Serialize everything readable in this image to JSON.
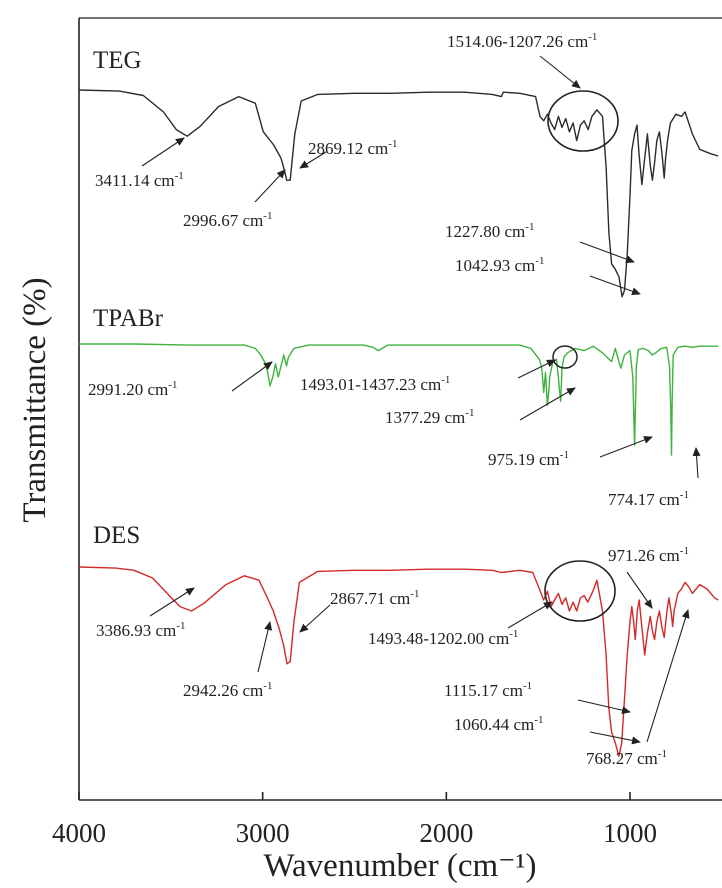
{
  "chart_data": {
    "type": "line",
    "xlabel": "Wavenumber (cm⁻¹)",
    "ylabel": "Transmittance (%)",
    "xlim": [
      4000,
      520
    ],
    "x_reversed": true,
    "xticks": [
      4000,
      3000,
      2000,
      1000
    ],
    "colors": {
      "TEG": "#2b2b2b",
      "TPABr": "#3fb33f",
      "DES": "#d12a2a"
    },
    "series": [
      {
        "name": "TEG",
        "baseline": 0.0,
        "points": [
          [
            4000,
            0.0
          ],
          [
            3780,
            -1
          ],
          [
            3650,
            -5
          ],
          [
            3540,
            -20
          ],
          [
            3470,
            -36
          ],
          [
            3411.14,
            -42
          ],
          [
            3340,
            -33
          ],
          [
            3240,
            -15
          ],
          [
            3130,
            -6
          ],
          [
            3040,
            -12
          ],
          [
            2996.67,
            -38
          ],
          [
            2940,
            -50
          ],
          [
            2900,
            -62
          ],
          [
            2880,
            -74
          ],
          [
            2869.12,
            -82
          ],
          [
            2850,
            -82
          ],
          [
            2825,
            -40
          ],
          [
            2790,
            -10
          ],
          [
            2700,
            -4
          ],
          [
            2500,
            -3
          ],
          [
            2300,
            -3
          ],
          [
            2100,
            -2
          ],
          [
            1900,
            -2
          ],
          [
            1750,
            -4
          ],
          [
            1700,
            -6
          ],
          [
            1690,
            -2
          ],
          [
            1600,
            -3
          ],
          [
            1514.06,
            -6
          ],
          [
            1490,
            -24
          ],
          [
            1470,
            -28
          ],
          [
            1450,
            -22
          ],
          [
            1430,
            -30
          ],
          [
            1410,
            -36
          ],
          [
            1390,
            -24
          ],
          [
            1370,
            -34
          ],
          [
            1350,
            -26
          ],
          [
            1330,
            -38
          ],
          [
            1310,
            -30
          ],
          [
            1290,
            -46
          ],
          [
            1270,
            -32
          ],
          [
            1250,
            -28
          ],
          [
            1227.8,
            -36
          ],
          [
            1207.26,
            -24
          ],
          [
            1180,
            -18
          ],
          [
            1150,
            -24
          ],
          [
            1130,
            -70
          ],
          [
            1115,
            -130
          ],
          [
            1100,
            -158
          ],
          [
            1080,
            -163
          ],
          [
            1060,
            -170
          ],
          [
            1042.93,
            -188
          ],
          [
            1030,
            -182
          ],
          [
            1015,
            -150
          ],
          [
            1000,
            -96
          ],
          [
            990,
            -55
          ],
          [
            975,
            -40
          ],
          [
            962,
            -32
          ],
          [
            950,
            -60
          ],
          [
            935,
            -86
          ],
          [
            920,
            -62
          ],
          [
            905,
            -40
          ],
          [
            890,
            -68
          ],
          [
            878,
            -82
          ],
          [
            866,
            -66
          ],
          [
            854,
            -46
          ],
          [
            840,
            -38
          ],
          [
            826,
            -58
          ],
          [
            814,
            -80
          ],
          [
            806,
            -62
          ],
          [
            795,
            -45
          ],
          [
            780,
            -30
          ],
          [
            750,
            -22
          ],
          [
            720,
            -24
          ],
          [
            700,
            -20
          ],
          [
            660,
            -40
          ],
          [
            620,
            -54
          ],
          [
            560,
            -58
          ],
          [
            520,
            -60
          ]
        ]
      },
      {
        "name": "TPABr",
        "baseline": 0.0,
        "points": [
          [
            4000,
            0.0
          ],
          [
            3700,
            0
          ],
          [
            3400,
            -1
          ],
          [
            3100,
            -1
          ],
          [
            3040,
            -4
          ],
          [
            3010,
            -10
          ],
          [
            2991.2,
            -16
          ],
          [
            2975,
            -24
          ],
          [
            2960,
            -38
          ],
          [
            2945,
            -30
          ],
          [
            2930,
            -18
          ],
          [
            2915,
            -30
          ],
          [
            2900,
            -20
          ],
          [
            2885,
            -10
          ],
          [
            2870,
            -20
          ],
          [
            2860,
            -12
          ],
          [
            2830,
            -4
          ],
          [
            2750,
            -1
          ],
          [
            2600,
            -1
          ],
          [
            2450,
            -1
          ],
          [
            2400,
            -3
          ],
          [
            2370,
            -6
          ],
          [
            2350,
            -4
          ],
          [
            2320,
            -1
          ],
          [
            2200,
            -1
          ],
          [
            2000,
            -1
          ],
          [
            1800,
            -1
          ],
          [
            1600,
            -1
          ],
          [
            1540,
            -4
          ],
          [
            1493.01,
            -14
          ],
          [
            1480,
            -22
          ],
          [
            1470,
            -44
          ],
          [
            1460,
            -26
          ],
          [
            1450,
            -56
          ],
          [
            1440,
            -38
          ],
          [
            1437.23,
            -30
          ],
          [
            1420,
            -16
          ],
          [
            1400,
            -14
          ],
          [
            1390,
            -30
          ],
          [
            1384,
            -42
          ],
          [
            1377.29,
            -52
          ],
          [
            1370,
            -22
          ],
          [
            1360,
            -12
          ],
          [
            1340,
            -8
          ],
          [
            1300,
            -4
          ],
          [
            1250,
            -6
          ],
          [
            1200,
            -2
          ],
          [
            1150,
            -8
          ],
          [
            1100,
            -16
          ],
          [
            1080,
            -4
          ],
          [
            1050,
            -22
          ],
          [
            1030,
            -10
          ],
          [
            1000,
            -6
          ],
          [
            985,
            -30
          ],
          [
            980,
            -62
          ],
          [
            975.19,
            -92
          ],
          [
            970,
            -54
          ],
          [
            965,
            -20
          ],
          [
            955,
            -5
          ],
          [
            930,
            -4
          ],
          [
            900,
            -6
          ],
          [
            880,
            -10
          ],
          [
            860,
            -8
          ],
          [
            830,
            -4
          ],
          [
            800,
            -3
          ],
          [
            785,
            -20
          ],
          [
            778,
            -60
          ],
          [
            774.17,
            -101
          ],
          [
            770,
            -50
          ],
          [
            765,
            -10
          ],
          [
            740,
            -3
          ],
          [
            700,
            -2
          ],
          [
            660,
            -3
          ],
          [
            620,
            -2
          ],
          [
            560,
            -2
          ],
          [
            520,
            -2
          ]
        ]
      },
      {
        "name": "DES",
        "baseline": 0.0,
        "points": [
          [
            4000,
            0.0
          ],
          [
            3800,
            -1
          ],
          [
            3700,
            -3
          ],
          [
            3600,
            -10
          ],
          [
            3520,
            -24
          ],
          [
            3450,
            -36
          ],
          [
            3386.93,
            -40
          ],
          [
            3320,
            -33
          ],
          [
            3200,
            -16
          ],
          [
            3100,
            -8
          ],
          [
            3020,
            -12
          ],
          [
            2980,
            -26
          ],
          [
            2942.26,
            -40
          ],
          [
            2910,
            -56
          ],
          [
            2885,
            -72
          ],
          [
            2867.71,
            -88
          ],
          [
            2850,
            -86
          ],
          [
            2830,
            -50
          ],
          [
            2800,
            -14
          ],
          [
            2700,
            -4
          ],
          [
            2500,
            -3
          ],
          [
            2300,
            -3
          ],
          [
            2100,
            -2
          ],
          [
            1900,
            -2
          ],
          [
            1750,
            -3
          ],
          [
            1700,
            -5
          ],
          [
            1600,
            -3
          ],
          [
            1530,
            -5
          ],
          [
            1493.48,
            -20
          ],
          [
            1470,
            -30
          ],
          [
            1450,
            -22
          ],
          [
            1430,
            -36
          ],
          [
            1410,
            -30
          ],
          [
            1390,
            -24
          ],
          [
            1370,
            -34
          ],
          [
            1350,
            -28
          ],
          [
            1330,
            -40
          ],
          [
            1310,
            -32
          ],
          [
            1290,
            -40
          ],
          [
            1270,
            -28
          ],
          [
            1250,
            -26
          ],
          [
            1230,
            -32
          ],
          [
            1202,
            -22
          ],
          [
            1180,
            -12
          ],
          [
            1150,
            -40
          ],
          [
            1130,
            -80
          ],
          [
            1115.17,
            -128
          ],
          [
            1100,
            -150
          ],
          [
            1080,
            -160
          ],
          [
            1060.44,
            -172
          ],
          [
            1045,
            -160
          ],
          [
            1030,
            -120
          ],
          [
            1015,
            -80
          ],
          [
            1000,
            -50
          ],
          [
            990,
            -36
          ],
          [
            980,
            -50
          ],
          [
            971.26,
            -66
          ],
          [
            960,
            -40
          ],
          [
            950,
            -30
          ],
          [
            935,
            -55
          ],
          [
            920,
            -80
          ],
          [
            905,
            -60
          ],
          [
            890,
            -45
          ],
          [
            878,
            -58
          ],
          [
            866,
            -66
          ],
          [
            854,
            -50
          ],
          [
            840,
            -40
          ],
          [
            826,
            -55
          ],
          [
            814,
            -64
          ],
          [
            800,
            -42
          ],
          [
            788,
            -28
          ],
          [
            775,
            -42
          ],
          [
            768.27,
            -54
          ],
          [
            760,
            -40
          ],
          [
            740,
            -24
          ],
          [
            720,
            -20
          ],
          [
            700,
            -14
          ],
          [
            680,
            -18
          ],
          [
            660,
            -24
          ],
          [
            620,
            -16
          ],
          [
            580,
            -20
          ],
          [
            540,
            -28
          ],
          [
            520,
            -30
          ]
        ]
      }
    ],
    "series_labels": [
      "TEG",
      "TPABr",
      "DES"
    ],
    "annotations": [
      {
        "series": "TEG",
        "text": "3411.14 cm",
        "sup": "-1",
        "x": 3411.14
      },
      {
        "series": "TEG",
        "text": "2996.67 cm",
        "sup": "-1",
        "x": 2996.67
      },
      {
        "series": "TEG",
        "text": "2869.12 cm",
        "sup": "-1",
        "x": 2869.12
      },
      {
        "series": "TEG",
        "text": "1514.06-1207.26 cm",
        "sup": "-1",
        "x": 1360
      },
      {
        "series": "TEG",
        "text": "1227.80 cm",
        "sup": "-1",
        "x": 1050
      },
      {
        "series": "TEG",
        "text": "1042.93 cm",
        "sup": "-1",
        "x": 1042.93
      },
      {
        "series": "TPABr",
        "text": "2991.20 cm",
        "sup": "-1",
        "x": 2991.2
      },
      {
        "series": "TPABr",
        "text": "1493.01-1437.23 cm",
        "sup": "-1",
        "x": 1440
      },
      {
        "series": "TPABr",
        "text": "1377.29 cm",
        "sup": "-1",
        "x": 1377.29
      },
      {
        "series": "TPABr",
        "text": "975.19 cm",
        "sup": "-1",
        "x": 975.19
      },
      {
        "series": "TPABr",
        "text": "774.17 cm",
        "sup": "-1",
        "x": 774.17
      },
      {
        "series": "DES",
        "text": "3386.93 cm",
        "sup": "-1",
        "x": 3386.93
      },
      {
        "series": "DES",
        "text": "2942.26 cm",
        "sup": "-1",
        "x": 2942.26
      },
      {
        "series": "DES",
        "text": "2867.71 cm",
        "sup": "-1",
        "x": 2867.71
      },
      {
        "series": "DES",
        "text": "1493.48-1202.00 cm",
        "sup": "-1",
        "x": 1350
      },
      {
        "series": "DES",
        "text": "971.26 cm",
        "sup": "-1",
        "x": 971.26
      },
      {
        "series": "DES",
        "text": "1115.17 cm",
        "sup": "-1",
        "x": 1115.17
      },
      {
        "series": "DES",
        "text": "1060.44 cm",
        "sup": "-1",
        "x": 1060.44
      },
      {
        "series": "DES",
        "text": "768.27 cm",
        "sup": "-1",
        "x": 768.27
      }
    ]
  }
}
